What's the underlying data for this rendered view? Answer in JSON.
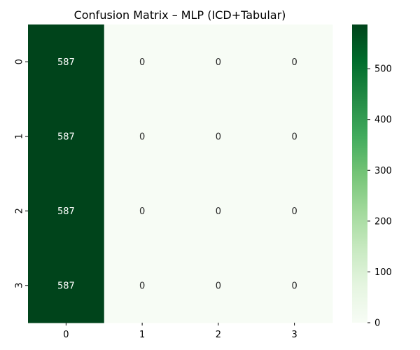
{
  "chart_data": {
    "type": "heatmap",
    "title": "Confusion Matrix – MLP (ICD+Tabular)",
    "xlabel": "",
    "ylabel": "",
    "x_categories": [
      "0",
      "1",
      "2",
      "3"
    ],
    "y_categories": [
      "0",
      "1",
      "2",
      "3"
    ],
    "values": [
      [
        587,
        0,
        0,
        0
      ],
      [
        587,
        0,
        0,
        0
      ],
      [
        587,
        0,
        0,
        0
      ],
      [
        587,
        0,
        0,
        0
      ]
    ],
    "colorbar": {
      "range": [
        0,
        587
      ],
      "ticks": [
        0,
        100,
        200,
        300,
        400,
        500
      ],
      "colormap": "Greens",
      "low_color": "#f7fcf5",
      "high_color": "#00441b"
    },
    "annotations": true
  }
}
